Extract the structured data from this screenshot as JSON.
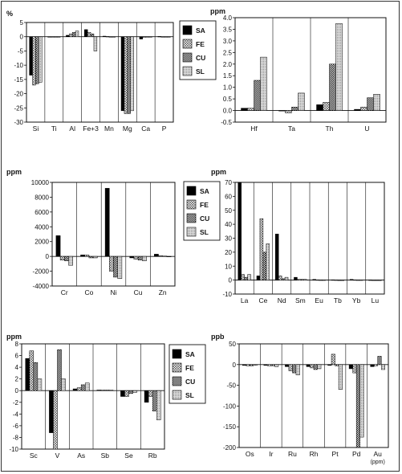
{
  "legend": [
    "SA",
    "FE",
    "CU",
    "SL"
  ],
  "chart_data": [
    {
      "type": "bar",
      "unit_label": "%",
      "categories": [
        "Si",
        "Ti",
        "Al",
        "Fe+3",
        "Mn",
        "Mg",
        "Ca",
        "P"
      ],
      "ylim": [
        -30,
        5
      ],
      "yticks": [
        5,
        0,
        -5,
        -10,
        -15,
        -20,
        -25,
        -30
      ],
      "series": [
        {
          "name": "SA",
          "values": [
            -13.5,
            0,
            0.5,
            2.5,
            0.2,
            -26,
            -0.8,
            0.1
          ]
        },
        {
          "name": "FE",
          "values": [
            -17,
            0,
            1,
            1.5,
            0.1,
            -27,
            -0.2,
            0
          ]
        },
        {
          "name": "CU",
          "values": [
            -16.5,
            0,
            1.5,
            1,
            0,
            -27,
            -0.1,
            0
          ]
        },
        {
          "name": "SL",
          "values": [
            -16,
            0,
            2,
            -5,
            0,
            -26,
            -0.1,
            0
          ]
        }
      ]
    },
    {
      "type": "bar",
      "unit_label": "ppm",
      "categories": [
        "Hf",
        "Ta",
        "Th",
        "U"
      ],
      "ylim": [
        -0.5,
        4.0
      ],
      "yticks": [
        4.0,
        3.5,
        3.0,
        2.5,
        2.0,
        1.5,
        1.0,
        0.5,
        0.0,
        -0.5
      ],
      "series": [
        {
          "name": "SA",
          "values": [
            0.1,
            0,
            0.25,
            0.05
          ]
        },
        {
          "name": "FE",
          "values": [
            0.1,
            -0.1,
            0.35,
            0.15
          ]
        },
        {
          "name": "CU",
          "values": [
            1.3,
            0.15,
            2.0,
            0.55
          ]
        },
        {
          "name": "SL",
          "values": [
            2.3,
            0.75,
            3.75,
            0.7
          ]
        }
      ]
    },
    {
      "type": "bar",
      "unit_label": "ppm",
      "categories": [
        "Cr",
        "Co",
        "Ni",
        "Cu",
        "Zn"
      ],
      "ylim": [
        -4000,
        10000
      ],
      "yticks": [
        10000,
        8000,
        6000,
        4000,
        2000,
        0,
        -2000,
        -4000
      ],
      "series": [
        {
          "name": "SA",
          "values": [
            2800,
            200,
            9200,
            -200,
            300
          ]
        },
        {
          "name": "FE",
          "values": [
            -500,
            200,
            -2000,
            -400,
            100
          ]
        },
        {
          "name": "CU",
          "values": [
            -600,
            -200,
            -2800,
            -500,
            50
          ]
        },
        {
          "name": "SL",
          "values": [
            -1200,
            -200,
            -3000,
            -600,
            0
          ]
        }
      ]
    },
    {
      "type": "bar",
      "unit_label": "ppm",
      "categories": [
        "La",
        "Ce",
        "Nd",
        "Sm",
        "Eu",
        "Tb",
        "Yb",
        "Lu"
      ],
      "ylim": [
        -10,
        70
      ],
      "yticks": [
        70,
        60,
        50,
        40,
        30,
        20,
        10,
        0,
        -10
      ],
      "series": [
        {
          "name": "SA",
          "values": [
            70,
            3,
            33,
            2,
            0.5,
            0.2,
            0.5,
            0.1
          ]
        },
        {
          "name": "FE",
          "values": [
            4,
            44,
            3,
            0.5,
            0.2,
            0.1,
            0.2,
            0
          ]
        },
        {
          "name": "CU",
          "values": [
            2,
            20,
            1,
            0.5,
            0.1,
            0,
            0.1,
            0
          ]
        },
        {
          "name": "SL",
          "values": [
            4,
            26,
            2,
            0.5,
            0.1,
            0,
            0.1,
            0
          ]
        }
      ]
    },
    {
      "type": "bar",
      "unit_label": "ppm",
      "categories": [
        "Sc",
        "V",
        "As",
        "Sb",
        "Se",
        "Rb"
      ],
      "ylim": [
        -10,
        8
      ],
      "yticks": [
        8,
        6,
        4,
        2,
        0,
        -2,
        -4,
        -6,
        -8,
        -10
      ],
      "series": [
        {
          "name": "SA",
          "values": [
            5.5,
            -7.2,
            0.3,
            0.1,
            -1.0,
            -2.0
          ]
        },
        {
          "name": "FE",
          "values": [
            6.8,
            -10,
            0.5,
            0.1,
            -1.0,
            -1.0
          ]
        },
        {
          "name": "CU",
          "values": [
            4.8,
            7.0,
            1.0,
            0.1,
            -0.5,
            -3.5
          ]
        },
        {
          "name": "SL",
          "values": [
            2.0,
            2.0,
            1.3,
            0.1,
            -0.3,
            -5.0
          ]
        }
      ]
    },
    {
      "type": "bar",
      "unit_label": "ppb",
      "categories": [
        "Os",
        "Ir",
        "Ru",
        "Rh",
        "Pt",
        "Pd",
        "Au"
      ],
      "category_sublabels": [
        "",
        "",
        "",
        "",
        "",
        "",
        "(ppm)"
      ],
      "ylim": [
        -200,
        50
      ],
      "yticks": [
        50,
        0,
        -50,
        -100,
        -150,
        -200
      ],
      "series": [
        {
          "name": "SA",
          "values": [
            -2,
            -2,
            -5,
            -5,
            -2,
            -10,
            -5
          ]
        },
        {
          "name": "FE",
          "values": [
            -3,
            -3,
            -15,
            -8,
            25,
            -20,
            -3
          ]
        },
        {
          "name": "CU",
          "values": [
            -3,
            -3,
            -20,
            -12,
            -3,
            -200,
            20
          ]
        },
        {
          "name": "SL",
          "values": [
            -2,
            -5,
            -25,
            -10,
            -60,
            -175,
            -12
          ]
        }
      ]
    }
  ]
}
